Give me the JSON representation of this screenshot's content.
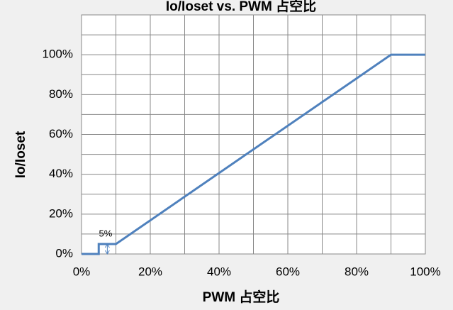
{
  "chart_data": {
    "type": "line",
    "title": "Io/Ioset vs. PWM 占空比",
    "xlabel": "PWM 占空比",
    "ylabel": "Io/Ioset",
    "annotation": "5%",
    "x": [
      0,
      5,
      5,
      10,
      90,
      100
    ],
    "series": [
      {
        "name": "Io/Ioset",
        "color": "#4f81bd",
        "values": [
          0,
          0,
          5,
          5,
          100,
          100
        ]
      }
    ],
    "xlim": [
      0,
      100
    ],
    "ylim": [
      0,
      120
    ],
    "xticks": [
      {
        "value": 0,
        "label": "0%"
      },
      {
        "value": 20,
        "label": "20%"
      },
      {
        "value": 40,
        "label": "40%"
      },
      {
        "value": 60,
        "label": "60%"
      },
      {
        "value": 80,
        "label": "80%"
      },
      {
        "value": 100,
        "label": "100%"
      }
    ],
    "yticks": [
      {
        "value": 0,
        "label": "0%"
      },
      {
        "value": 20,
        "label": "20%"
      },
      {
        "value": 40,
        "label": "40%"
      },
      {
        "value": 60,
        "label": "60%"
      },
      {
        "value": 80,
        "label": "80%"
      },
      {
        "value": 100,
        "label": "100%"
      }
    ],
    "xminor": [
      10,
      30,
      50,
      70,
      90
    ],
    "yminor": [
      10,
      30,
      50,
      70,
      90,
      110
    ],
    "grid": true
  }
}
